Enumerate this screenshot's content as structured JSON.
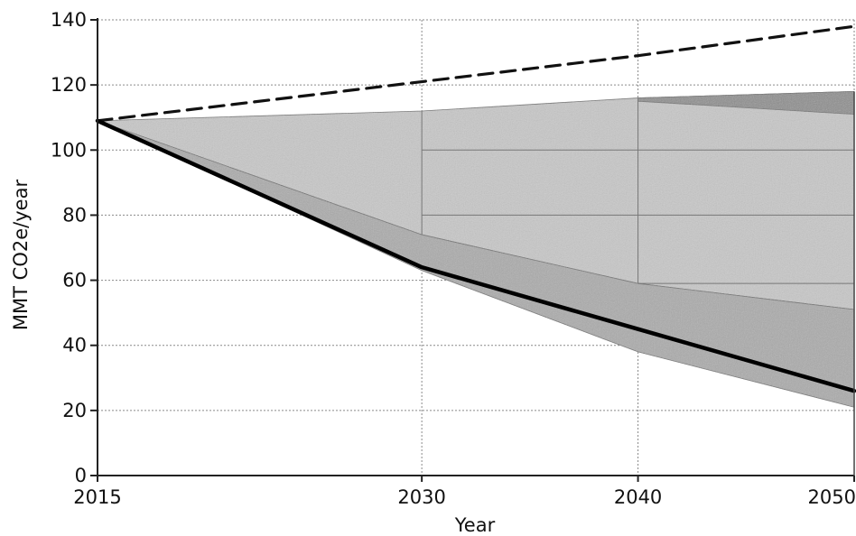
{
  "chart_data": {
    "type": "area",
    "title": "",
    "xlabel": "Year",
    "ylabel": "MMT CO2e/year",
    "xlim": [
      2015,
      2050
    ],
    "ylim": [
      0,
      140
    ],
    "x_ticks": [
      2015,
      2030,
      2040,
      2050
    ],
    "y_ticks": [
      0,
      20,
      40,
      60,
      80,
      100,
      120,
      140
    ],
    "grid": true,
    "legend": "none",
    "colors": {
      "reference_line": "#111111",
      "target_line": "#000000",
      "band_light": "#c8c8c8",
      "band_medium": "#ababab",
      "band_dark": "#8e8e8e"
    },
    "series": [
      {
        "style": "dashed",
        "x": [
          2015,
          2030,
          2040,
          2050
        ],
        "y": [
          109,
          121,
          129,
          138
        ]
      },
      {
        "style": "solid-bold",
        "x": [
          2015,
          2030,
          2040,
          2050
        ],
        "y": [
          109,
          64,
          45,
          26
        ]
      }
    ],
    "bands": [
      {
        "shade": "light",
        "x": [
          2015,
          2030,
          2040,
          2050
        ],
        "upper": [
          109,
          112,
          116,
          118
        ],
        "lower": [
          109,
          74,
          59,
          51
        ]
      },
      {
        "shade": "medium",
        "x": [
          2015,
          2030,
          2040,
          2050
        ],
        "upper": [
          109,
          74,
          59,
          51
        ],
        "lower": [
          109,
          63,
          38,
          21
        ]
      },
      {
        "shade": "dark",
        "x": [
          2040,
          2050
        ],
        "upper": [
          116,
          118
        ],
        "lower": [
          115,
          111
        ]
      }
    ]
  }
}
